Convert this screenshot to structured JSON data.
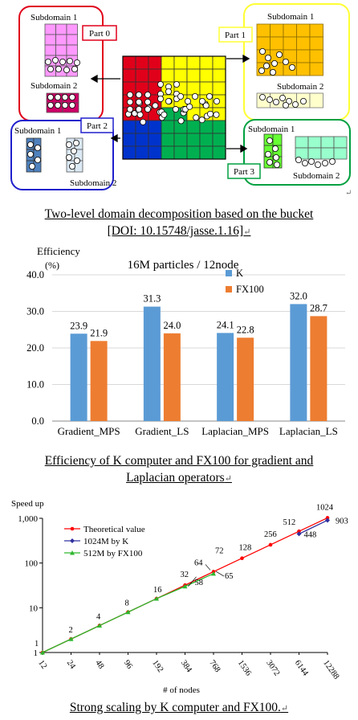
{
  "figure1": {
    "parts": [
      {
        "label": "Part 0",
        "sub_top": "Subdomain 1",
        "sub_bottom": "Subdomain 2"
      },
      {
        "label": "Part 1",
        "sub_top": "Subdomain 1",
        "sub_bottom": "Subdomain 2"
      },
      {
        "label": "Part 2",
        "sub_top": "Subdomain 1",
        "sub_bottom": "Subdomain 2"
      },
      {
        "label": "Part 3",
        "sub_top": "Subdomain 1",
        "sub_bottom": "Subdomain 2"
      }
    ],
    "colors": {
      "part0": "#e0001a",
      "part1": "#ffff00",
      "part2": "#0033cc",
      "part3": "#00b050",
      "part0_light": "#ff99ff",
      "part0_dark": "#cc0066",
      "part1_light": "#ffc000",
      "part1_pale": "#ffffcc",
      "part2_light": "#4f81bd",
      "part2_pale": "#dbe9f5",
      "part3_light": "#66ff33",
      "part3_pale": "#99ffcc",
      "frame0": "#e0001a",
      "frame1": "#ffff33",
      "frame2": "#1f1fcc",
      "frame3": "#00a040"
    },
    "caption_line1": "Two-level domain decomposition based on the bucket",
    "caption_line2": "[DOI: 10.15748/jasse.1.16]"
  },
  "figure2": {
    "caption_line1": "Efficiency of K computer and FX100 for gradient and",
    "caption_line2": "Laplacian operators",
    "chart_data": {
      "type": "bar",
      "title": "16M particles / 12node",
      "ylabel": "Efficiency",
      "yunit": "(%)",
      "ylim": [
        0,
        40
      ],
      "yticks": [
        "0.0",
        "10.0",
        "20.0",
        "30.0",
        "40.0"
      ],
      "categories": [
        "Gradient_MPS",
        "Gradient_LS",
        "Laplacian_MPS",
        "Laplacian_LS"
      ],
      "series": [
        {
          "name": "K",
          "color": "#5b9bd5",
          "values": [
            23.9,
            31.3,
            24.1,
            32.0
          ],
          "labels": [
            "23.9",
            "31.3",
            "24.1",
            "32.0"
          ]
        },
        {
          "name": "FX100",
          "color": "#ed7d31",
          "values": [
            21.9,
            24.0,
            22.8,
            28.7
          ],
          "labels": [
            "21.9",
            "24.0",
            "22.8",
            "28.7"
          ]
        }
      ],
      "grid": true,
      "legend": "top-right"
    }
  },
  "figure3": {
    "caption_line1": "Strong scaling by K computer and FX100.",
    "chart_data": {
      "type": "line",
      "ylabel": "Speed up",
      "xlabel": "# of nodes",
      "yscale": "log",
      "ylim": [
        1,
        1000
      ],
      "yticks": [
        "1",
        "10",
        "100",
        "1,000"
      ],
      "x": [
        "12",
        "24",
        "48",
        "96",
        "192",
        "384",
        "768",
        "1536",
        "3072",
        "6144",
        "12288"
      ],
      "series": [
        {
          "name": "Theoretical value",
          "color": "#ff0000",
          "marker": "circle",
          "values": [
            1,
            2,
            4,
            8,
            16,
            32,
            64,
            128,
            256,
            512,
            1024
          ]
        },
        {
          "name": "1024M by K",
          "color": "#3030a0",
          "marker": "diamond",
          "values": [
            null,
            null,
            null,
            null,
            null,
            null,
            null,
            null,
            null,
            448,
            903
          ]
        },
        {
          "name": "512M by FX100",
          "color": "#2eb82e",
          "marker": "triangle",
          "values": [
            1,
            2,
            4,
            8,
            16,
            30,
            58,
            null,
            null,
            null,
            null
          ]
        }
      ],
      "annotations": [
        "1",
        "2",
        "4",
        "8",
        "16",
        "32",
        "58",
        "64",
        "65",
        "72",
        "128",
        "256",
        "448",
        "512",
        "903",
        "1024"
      ],
      "legend": "top-left",
      "grid": false
    }
  },
  "return_mark": "↵"
}
